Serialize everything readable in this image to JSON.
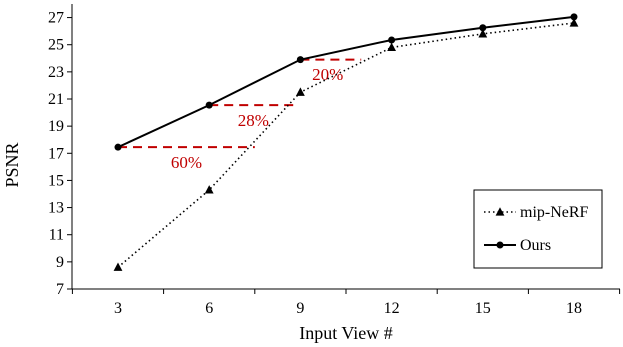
{
  "chart_data": {
    "type": "line",
    "xlabel": "Input View #",
    "ylabel": "PSNR",
    "categories": [
      3,
      6,
      9,
      12,
      15,
      18
    ],
    "xlim": [
      3,
      18
    ],
    "ylim": [
      7,
      28
    ],
    "yticks": [
      7,
      9,
      11,
      13,
      15,
      17,
      19,
      21,
      23,
      25,
      27
    ],
    "grid": false,
    "legend_position": "bottom-right",
    "series": [
      {
        "name": "mip-NeRF",
        "values": [
          8.6,
          14.3,
          21.5,
          24.8,
          25.8,
          26.6
        ],
        "marker": "triangle",
        "line": "dotted",
        "color": "#000000"
      },
      {
        "name": "Ours",
        "values": [
          17.45,
          20.55,
          23.9,
          25.35,
          26.25,
          27.05
        ],
        "marker": "circle",
        "line": "solid",
        "color": "#000000"
      }
    ],
    "annotations": [
      {
        "text": "60%",
        "x_from": 3,
        "x_to": 7.5,
        "y": 17.45,
        "text_x": 5.25,
        "text_y": 15.9
      },
      {
        "text": "28%",
        "x_from": 6,
        "x_to": 8.8,
        "y": 20.55,
        "text_x": 7.45,
        "text_y": 19.0
      },
      {
        "text": "20%",
        "x_from": 9,
        "x_to": 11.0,
        "y": 23.9,
        "text_x": 9.9,
        "text_y": 22.4
      }
    ],
    "annotation_color": "#C00000"
  }
}
